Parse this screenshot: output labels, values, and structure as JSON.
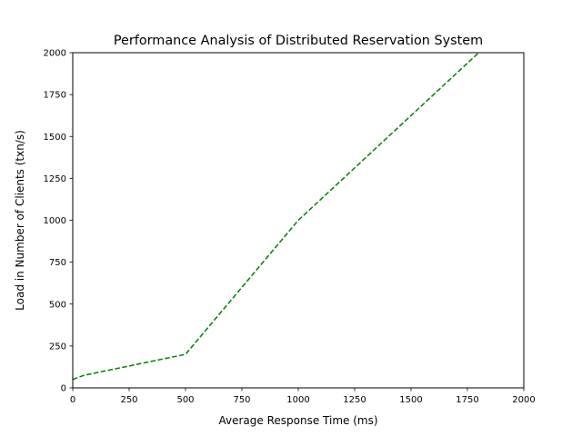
{
  "chart_data": {
    "type": "line",
    "title": "Performance Analysis of Distributed Reservation System",
    "xlabel": "Average Response Time (ms)",
    "ylabel": "Load in Number of Clients (txn/s)",
    "xlim": [
      0,
      2000
    ],
    "ylim": [
      0,
      2000
    ],
    "xticks": [
      0,
      250,
      500,
      750,
      1000,
      1250,
      1500,
      1750,
      2000
    ],
    "yticks": [
      0,
      250,
      500,
      750,
      1000,
      1250,
      1500,
      1750,
      2000
    ],
    "xtick_labels": [
      "0",
      "250",
      "500",
      "750",
      "1000",
      "1250",
      "1500",
      "1750",
      "2000"
    ],
    "ytick_labels": [
      "0",
      "250",
      "500",
      "750",
      "1000",
      "1250",
      "1500",
      "1750",
      "2000"
    ],
    "grid": false,
    "series": [
      {
        "color": "#008000",
        "line_style": "dashed",
        "x": [
          0,
          50,
          500,
          750,
          1000,
          1800
        ],
        "y": [
          50,
          75,
          200,
          600,
          1000,
          2000
        ]
      }
    ]
  }
}
